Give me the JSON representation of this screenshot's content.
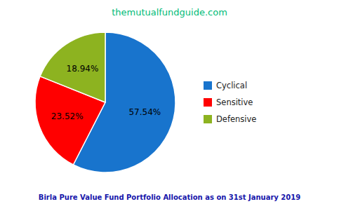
{
  "chart_data": {
    "type": "pie",
    "title": "themutualfundguide.com",
    "subtitle": "Birla Pure Value Fund Portfolio Allocation as on 31st January 2019",
    "categories": [
      "Cyclical",
      "Sensitive",
      "Defensive"
    ],
    "values": [
      57.54,
      23.52,
      18.94
    ],
    "value_labels": [
      "57.54%",
      "23.52%",
      "18.94%"
    ],
    "colors": [
      "#1874CD",
      "#FF0000",
      "#8DB320"
    ],
    "data_labels": true,
    "legend": "right"
  }
}
